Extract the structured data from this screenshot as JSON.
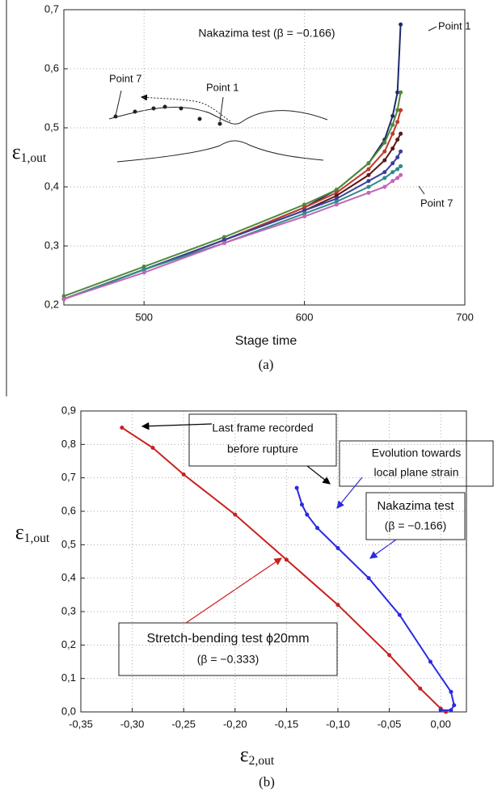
{
  "chart_data": [
    {
      "type": "line",
      "annotations": [
        "Nakazima test (β = −0.166)",
        "Point 1",
        "Point 7",
        "Point 7",
        "Point 1"
      ],
      "x_label": "Stage time",
      "y_label": "ε",
      "y_label_sub": "1,out",
      "caption": "(a)",
      "x": [
        450,
        500,
        550,
        600,
        620,
        640,
        650,
        655,
        658,
        660
      ],
      "series": [
        {
          "color": "#1f2a6b",
          "values": [
            0.21,
            0.26,
            0.31,
            0.365,
            0.395,
            0.44,
            0.48,
            0.52,
            0.56,
            0.675
          ]
        },
        {
          "color": "#4e8a3a",
          "values": [
            0.215,
            0.265,
            0.315,
            0.37,
            0.395,
            0.44,
            0.475,
            0.505,
            0.53,
            0.56
          ]
        },
        {
          "color": "#c0392b",
          "values": [
            0.21,
            0.26,
            0.31,
            0.365,
            0.39,
            0.43,
            0.46,
            0.49,
            0.51,
            0.53
          ]
        },
        {
          "color": "#5a1a1a",
          "values": [
            0.21,
            0.26,
            0.31,
            0.36,
            0.385,
            0.42,
            0.445,
            0.465,
            0.48,
            0.49
          ]
        },
        {
          "color": "#3b3f9a",
          "values": [
            0.21,
            0.26,
            0.31,
            0.36,
            0.38,
            0.41,
            0.425,
            0.44,
            0.45,
            0.46
          ]
        },
        {
          "color": "#2f8a8a",
          "values": [
            0.21,
            0.26,
            0.305,
            0.355,
            0.375,
            0.4,
            0.415,
            0.425,
            0.43,
            0.435
          ]
        },
        {
          "color": "#c266b8",
          "values": [
            0.21,
            0.255,
            0.305,
            0.35,
            0.37,
            0.39,
            0.4,
            0.41,
            0.415,
            0.42
          ]
        }
      ],
      "xlim": [
        450,
        700
      ],
      "xticks": [
        500,
        600,
        700
      ],
      "ylim": [
        0.2,
        0.7
      ],
      "yticks": [
        {
          "value": 0.2,
          "label": "0,2"
        },
        {
          "value": 0.3,
          "label": "0,3"
        },
        {
          "value": 0.4,
          "label": "0,4"
        },
        {
          "value": 0.5,
          "label": "0,5"
        },
        {
          "value": 0.6,
          "label": "0,6"
        },
        {
          "value": 0.7,
          "label": "0,7"
        }
      ],
      "grid": true
    },
    {
      "type": "line",
      "annotations": [
        "Last frame recorded",
        "before rupture",
        "Evolution towards",
        "local plane strain",
        "Nakazima test",
        "(β = −0.166)",
        "Stretch-bending test ϕ20mm",
        "(β = −0.333)"
      ],
      "x_label": "ε",
      "x_label_sub": "2,out",
      "y_label": "ε",
      "y_label_sub": "1,out",
      "caption": "(b)",
      "series": [
        {
          "color": "#c8211e",
          "x": [
            -0.31,
            -0.28,
            -0.25,
            -0.2,
            -0.15,
            -0.1,
            -0.05,
            -0.02,
            0,
            0.005
          ],
          "values": [
            0.85,
            0.79,
            0.71,
            0.59,
            0.455,
            0.32,
            0.17,
            0.07,
            0.01,
            0
          ]
        },
        {
          "color": "#2a2ae0",
          "x": [
            -0.14,
            -0.135,
            -0.13,
            -0.12,
            -0.1,
            -0.07,
            -0.04,
            -0.01,
            0.01,
            0.013,
            0.01,
            0
          ],
          "values": [
            0.67,
            0.62,
            0.59,
            0.55,
            0.49,
            0.4,
            0.29,
            0.15,
            0.06,
            0.02,
            0.005,
            0.005
          ]
        }
      ],
      "xlim": [
        -0.35,
        0.025
      ],
      "xticks": [
        {
          "value": -0.35,
          "label": "-0,35"
        },
        {
          "value": -0.3,
          "label": "-0,30"
        },
        {
          "value": -0.25,
          "label": "-0,25"
        },
        {
          "value": -0.2,
          "label": "-0,20"
        },
        {
          "value": -0.15,
          "label": "-0,15"
        },
        {
          "value": -0.1,
          "label": "-0,10"
        },
        {
          "value": -0.05,
          "label": "-0,05"
        },
        {
          "value": 0,
          "label": "0,00"
        }
      ],
      "ylim": [
        0,
        0.9
      ],
      "yticks": [
        {
          "value": 0,
          "label": "0,0"
        },
        {
          "value": 0.1,
          "label": "0,1"
        },
        {
          "value": 0.2,
          "label": "0,2"
        },
        {
          "value": 0.3,
          "label": "0,3"
        },
        {
          "value": 0.4,
          "label": "0,4"
        },
        {
          "value": 0.5,
          "label": "0,5"
        },
        {
          "value": 0.6,
          "label": "0,6"
        },
        {
          "value": 0.7,
          "label": "0,7"
        },
        {
          "value": 0.8,
          "label": "0,8"
        },
        {
          "value": 0.9,
          "label": "0,9"
        }
      ],
      "grid": true
    }
  ]
}
